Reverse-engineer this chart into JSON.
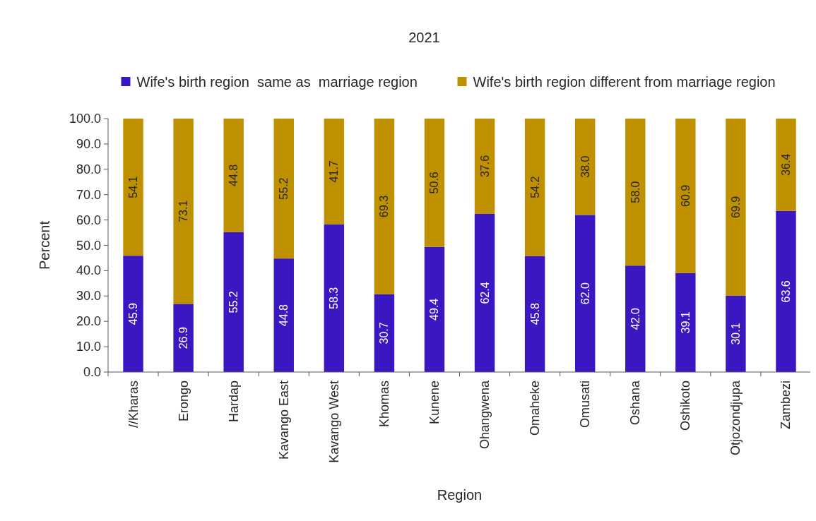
{
  "chart_data": {
    "type": "bar",
    "title": "2021",
    "xlabel": "Region",
    "ylabel": "Percent",
    "stacked": true,
    "legend": "top",
    "grid": false,
    "categories": [
      "//Kharas",
      "Erongo",
      "Hardap",
      "Kavango East",
      "Kavango West",
      "Khomas",
      "Kunene",
      "Ohangwena",
      "Omaheke",
      "Omusati",
      "Oshana",
      "Oshikoto",
      "Otjozondjupa",
      "Zambezi"
    ],
    "series": [
      {
        "name": "Wife's birth region  same as  marriage region",
        "color": "#3a17c0",
        "values": [
          45.9,
          26.9,
          55.2,
          44.8,
          58.3,
          30.7,
          49.4,
          62.4,
          45.8,
          62.0,
          42.0,
          39.1,
          30.1,
          63.6
        ],
        "value_labels": [
          "45.9",
          "26.9",
          "55.2",
          "44.8",
          "58.3",
          "30.7",
          "49.4",
          "62.4",
          "45.8",
          "62.0",
          "42.0",
          "39.1",
          "30.1",
          "63.6"
        ]
      },
      {
        "name": "Wife's birth region different from marriage region",
        "color": "#bf9000",
        "values": [
          54.1,
          73.1,
          44.8,
          55.2,
          41.7,
          69.3,
          50.6,
          37.6,
          54.2,
          38.0,
          58.0,
          60.9,
          69.9,
          36.4
        ],
        "value_labels": [
          "54.1",
          "73.1",
          "44.8",
          "55.2",
          "41.7",
          "69.3",
          "50.6",
          "37.6",
          "54.2",
          "38.0",
          "58.0",
          "60.9",
          "69.9",
          "36.4"
        ]
      }
    ],
    "ylim": [
      0,
      100
    ],
    "yticks": [
      {
        "value": 0,
        "label": "0.0"
      },
      {
        "value": 10,
        "label": "10.0"
      },
      {
        "value": 20,
        "label": "20.0"
      },
      {
        "value": 30,
        "label": "30.0"
      },
      {
        "value": 40,
        "label": "40.0"
      },
      {
        "value": 50,
        "label": "50.0"
      },
      {
        "value": 60,
        "label": "60.0"
      },
      {
        "value": 70,
        "label": "70.0"
      },
      {
        "value": 80,
        "label": "80.0"
      },
      {
        "value": 90,
        "label": "90.0"
      },
      {
        "value": 100,
        "label": "100.0"
      }
    ]
  }
}
